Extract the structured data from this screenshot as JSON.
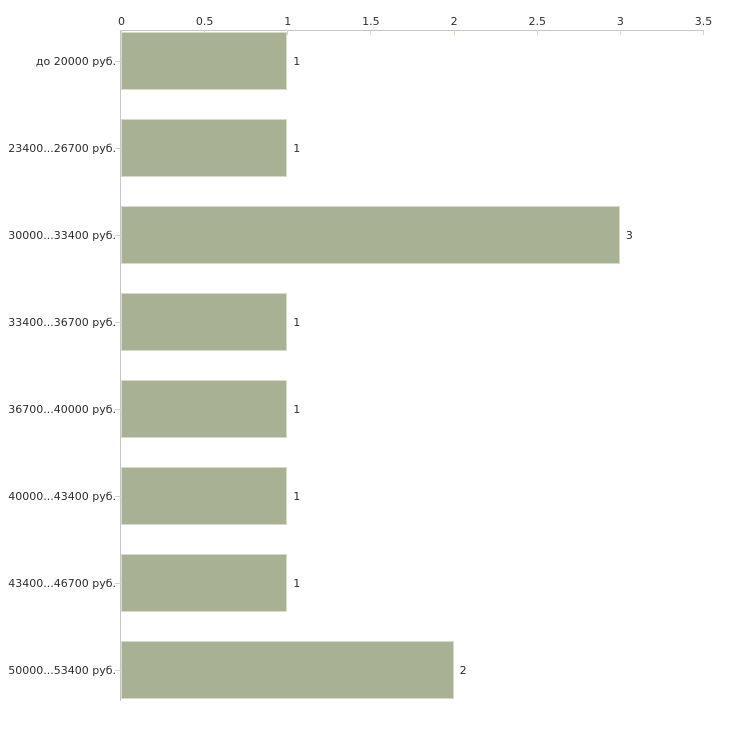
{
  "chart_data": {
    "type": "bar",
    "orientation": "horizontal",
    "title": "",
    "xlabel": "",
    "ylabel": "",
    "categories": [
      "до 20000 руб.",
      "23400...26700 руб.",
      "30000...33400 руб.",
      "33400...36700 руб.",
      "36700...40000 руб.",
      "40000...43400 руб.",
      "43400...46700 руб.",
      "50000...53400 руб."
    ],
    "values": [
      1,
      1,
      3,
      1,
      1,
      1,
      1,
      2
    ],
    "value_labels": [
      "1",
      "1",
      "3",
      "1",
      "1",
      "1",
      "1",
      "2"
    ],
    "xticks": [
      0,
      0.5,
      1,
      1.5,
      2,
      2.5,
      3,
      3.5
    ],
    "xtick_labels": [
      "0",
      "0.5",
      "1",
      "1.5",
      "2",
      "2.5",
      "3",
      "3.5"
    ],
    "xlim": [
      0,
      3.5
    ],
    "grid": false,
    "legend": false,
    "axis_position": "top",
    "colors": {
      "bar_fill": "#a9b194",
      "bar_edge": "#d6dac8",
      "axis_line": "#c6c6c6",
      "tick_mark": "#d4d8ba",
      "text": "#2e2e2e",
      "background": "#ffffff"
    }
  }
}
